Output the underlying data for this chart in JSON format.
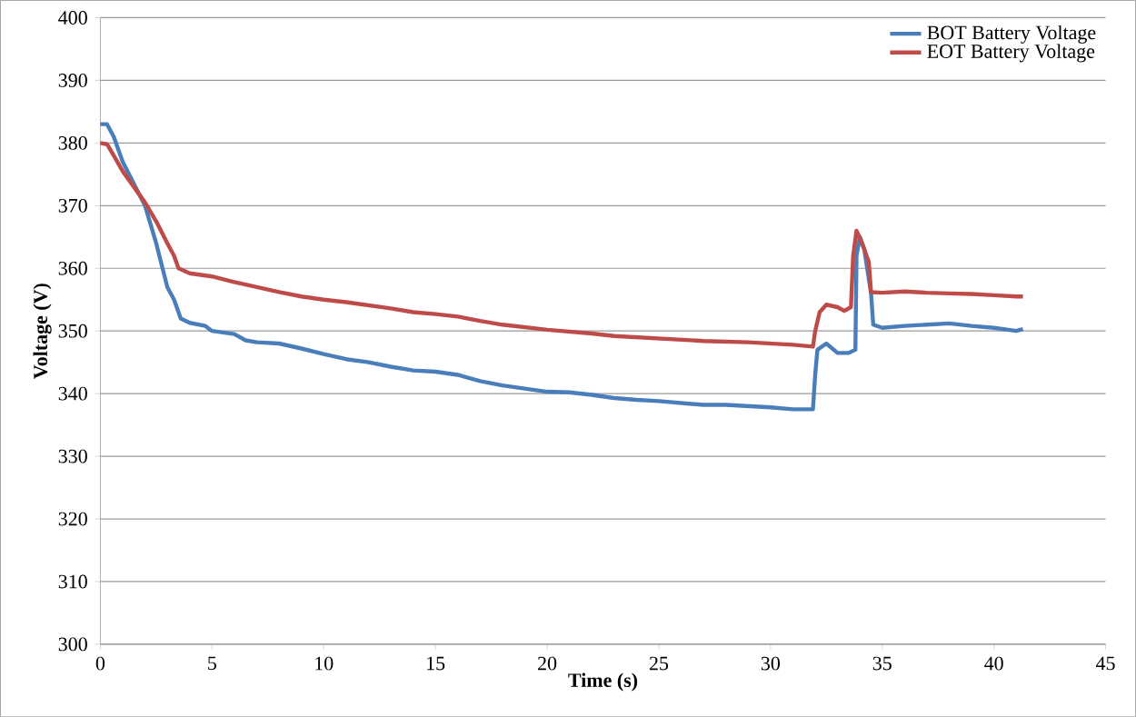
{
  "chart_data": {
    "type": "line",
    "xlabel": "Time (s)",
    "ylabel": "Voltage (V)",
    "xlim": [
      0,
      45
    ],
    "xticks": [
      0,
      5,
      10,
      15,
      20,
      25,
      30,
      35,
      40,
      45
    ],
    "ylim": [
      300,
      400
    ],
    "yticks": [
      300,
      310,
      320,
      330,
      340,
      350,
      360,
      370,
      380,
      390,
      400
    ],
    "grid": "y",
    "legend": "top right",
    "series": [
      {
        "name": "BOT Battery Voltage",
        "color": "#4a7ebb",
        "x": [
          0,
          0.3,
          0.6,
          1,
          2,
          2.5,
          3,
          3.3,
          3.6,
          4,
          4.7,
          5,
          6,
          6.5,
          7,
          8,
          9,
          10,
          11,
          12,
          13,
          14,
          15,
          16,
          17,
          18,
          19,
          20,
          21,
          22,
          23,
          24,
          25,
          26,
          27,
          28,
          29,
          30,
          31,
          31.9,
          32,
          32.1,
          32.5,
          33,
          33.5,
          33.8,
          33.85,
          34,
          34.2,
          34.5,
          34.6,
          35,
          36,
          37,
          38,
          39,
          40,
          41,
          41.3
        ],
        "values": [
          383,
          383,
          381,
          377,
          370,
          364,
          357,
          355,
          352,
          351.3,
          350.8,
          350,
          349.5,
          348.5,
          348.2,
          348,
          347.2,
          346.3,
          345.5,
          345,
          344.3,
          343.7,
          343.5,
          343,
          342,
          341.3,
          340.8,
          340.3,
          340.2,
          339.8,
          339.3,
          339,
          338.8,
          338.5,
          338.2,
          338.2,
          338,
          337.8,
          337.5,
          337.5,
          343,
          347,
          348,
          346.5,
          346.5,
          347,
          362,
          365,
          363,
          356,
          351,
          350.5,
          350.8,
          351,
          351.2,
          350.8,
          350.5,
          350,
          350.3
        ]
      },
      {
        "name": "EOT Battery Voltage",
        "color": "#be4b48",
        "x": [
          0,
          0.3,
          0.6,
          1,
          1.5,
          2,
          2.5,
          3,
          3.3,
          3.5,
          4,
          5,
          6,
          7,
          8,
          9,
          10,
          11,
          12,
          13,
          14,
          15,
          16,
          17,
          18,
          19,
          20,
          21,
          22,
          23,
          24,
          25,
          26,
          27,
          28,
          29,
          30,
          31,
          31.9,
          32,
          32.2,
          32.5,
          33,
          33.3,
          33.6,
          33.7,
          33.85,
          34.1,
          34.4,
          34.5,
          35,
          36,
          37,
          38,
          39,
          40,
          41,
          41.3
        ],
        "values": [
          380,
          379.8,
          378,
          375.5,
          373,
          370.5,
          367.5,
          364,
          362,
          360,
          359.2,
          358.7,
          357.8,
          357,
          356.2,
          355.5,
          355,
          354.6,
          354.1,
          353.6,
          353,
          352.7,
          352.3,
          351.6,
          351,
          350.6,
          350.2,
          349.9,
          349.6,
          349.2,
          349,
          348.8,
          348.6,
          348.4,
          348.3,
          348.2,
          348,
          347.8,
          347.5,
          350,
          353,
          354.2,
          353.8,
          353.2,
          353.8,
          362,
          366,
          364,
          361,
          356.2,
          356.1,
          356.3,
          356.1,
          356,
          355.9,
          355.7,
          355.5,
          355.5
        ]
      }
    ]
  }
}
